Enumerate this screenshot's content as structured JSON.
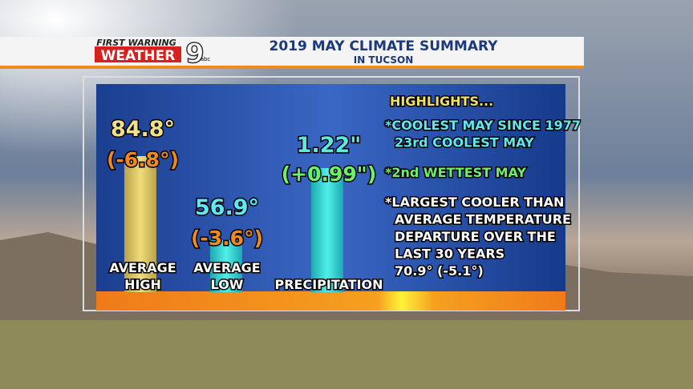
{
  "header": {
    "logo_top": "FIRST WARNING",
    "logo_main": "WEATHER",
    "logo_channel": "9",
    "logo_network": "abc",
    "title": "2019 MAY CLIMATE SUMMARY",
    "subtitle": "IN TUCSON"
  },
  "bars": [
    {
      "value": "84.8°",
      "departure": "(-6.8°)",
      "label": [
        "AVERAGE",
        "HIGH"
      ]
    },
    {
      "value": "56.9°",
      "departure": "(-3.6°)",
      "label": [
        "AVERAGE",
        "LOW"
      ]
    },
    {
      "value": "1.22\"",
      "departure": "(+0.99\")",
      "label": [
        "PRECIPITATION"
      ]
    }
  ],
  "highlights": {
    "heading": "HIGHLIGHTS...",
    "items": [
      [
        "*COOLEST MAY SINCE 1977",
        "23rd COOLEST MAY"
      ],
      [
        "*2nd WETTEST MAY"
      ],
      [
        "*LARGEST COOLER THAN",
        "AVERAGE TEMPERATURE",
        "DEPARTURE OVER THE",
        "LAST 30 YEARS",
        "70.9° (-5.1°)"
      ]
    ]
  }
}
